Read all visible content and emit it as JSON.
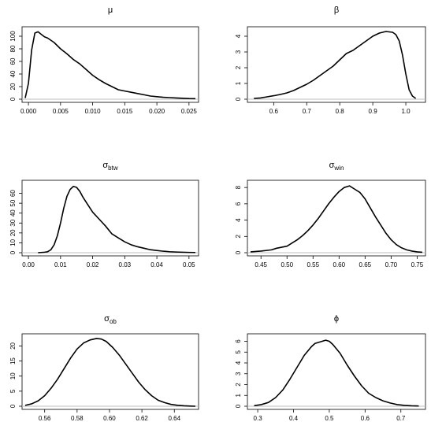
{
  "chart_data": [
    {
      "type": "line",
      "title": "μ",
      "xlim": [
        -0.0005,
        0.026
      ],
      "ylim": [
        0,
        110
      ],
      "xticks": [
        "0.000",
        "0.005",
        "0.010",
        "0.015",
        "0.020",
        "0.025"
      ],
      "xtick_values": [
        0,
        0.005,
        0.01,
        0.015,
        0.02,
        0.025
      ],
      "yticks": [
        "0",
        "20",
        "40",
        "60",
        "80",
        "100"
      ],
      "ytick_values": [
        0,
        20,
        40,
        60,
        80,
        100
      ],
      "series": [
        {
          "x": [
            -0.0005,
            0,
            0.0005,
            0.001,
            0.0015,
            0.002,
            0.0025,
            0.003,
            0.004,
            0.005,
            0.006,
            0.007,
            0.008,
            0.009,
            0.01,
            0.011,
            0.012,
            0.013,
            0.014,
            0.015,
            0.016,
            0.017,
            0.018,
            0.019,
            0.02,
            0.021,
            0.022,
            0.023,
            0.024,
            0.025,
            0.026
          ],
          "y": [
            2,
            25,
            78,
            105,
            107,
            103,
            99,
            97,
            90,
            80,
            72,
            63,
            56,
            47,
            38,
            31,
            25,
            20,
            15,
            13,
            11,
            9,
            7,
            5,
            4,
            3,
            2.5,
            2,
            1.5,
            1,
            0.8
          ]
        }
      ]
    },
    {
      "type": "line",
      "title": "β",
      "xlim": [
        0.53,
        1.05
      ],
      "ylim": [
        0,
        4.4
      ],
      "xticks": [
        "0.6",
        "0.7",
        "0.8",
        "0.9",
        "1.0"
      ],
      "xtick_values": [
        0.6,
        0.7,
        0.8,
        0.9,
        1.0
      ],
      "yticks": [
        "0",
        "1",
        "2",
        "3",
        "4"
      ],
      "ytick_values": [
        0,
        1,
        2,
        3,
        4
      ],
      "series": [
        {
          "x": [
            0.54,
            0.56,
            0.58,
            0.6,
            0.62,
            0.64,
            0.66,
            0.68,
            0.7,
            0.72,
            0.74,
            0.76,
            0.78,
            0.8,
            0.82,
            0.84,
            0.86,
            0.88,
            0.9,
            0.92,
            0.94,
            0.96,
            0.97,
            0.98,
            0.99,
            1.0,
            1.01,
            1.02,
            1.03
          ],
          "y": [
            0.05,
            0.08,
            0.15,
            0.22,
            0.3,
            0.4,
            0.55,
            0.75,
            0.95,
            1.2,
            1.5,
            1.8,
            2.1,
            2.5,
            2.9,
            3.1,
            3.4,
            3.7,
            4.0,
            4.2,
            4.3,
            4.25,
            4.1,
            3.7,
            2.8,
            1.6,
            0.6,
            0.2,
            0.05
          ]
        }
      ]
    },
    {
      "type": "line",
      "title": "σbtw",
      "title_main": "σ",
      "title_sub": "btw",
      "xlim": [
        -0.001,
        0.052
      ],
      "ylim": [
        0,
        70
      ],
      "xticks": [
        "0.00",
        "0.01",
        "0.02",
        "0.03",
        "0.04",
        "0.05"
      ],
      "xtick_values": [
        0,
        0.01,
        0.02,
        0.03,
        0.04,
        0.05
      ],
      "yticks": [
        "0",
        "10",
        "20",
        "30",
        "40",
        "50",
        "60"
      ],
      "ytick_values": [
        0,
        10,
        20,
        30,
        40,
        50,
        60
      ],
      "series": [
        {
          "x": [
            0.003,
            0.005,
            0.006,
            0.007,
            0.008,
            0.009,
            0.01,
            0.011,
            0.012,
            0.013,
            0.014,
            0.015,
            0.016,
            0.017,
            0.018,
            0.019,
            0.02,
            0.022,
            0.024,
            0.026,
            0.028,
            0.03,
            0.032,
            0.034,
            0.036,
            0.038,
            0.04,
            0.042,
            0.044,
            0.046,
            0.048,
            0.05,
            0.052
          ],
          "y": [
            0,
            0.5,
            1,
            3,
            8,
            17,
            30,
            45,
            57,
            64,
            67,
            66,
            62,
            56,
            51,
            46,
            41,
            34,
            27,
            19,
            15,
            11,
            8,
            6,
            4.5,
            3,
            2.2,
            1.5,
            1,
            0.7,
            0.5,
            0.3,
            0.2
          ]
        }
      ]
    },
    {
      "type": "line",
      "title": "σwin",
      "title_main": "σ",
      "title_sub": "win",
      "xlim": [
        0.43,
        0.76
      ],
      "ylim": [
        0,
        8.5
      ],
      "xticks": [
        "0.45",
        "0.50",
        "0.55",
        "0.60",
        "0.65",
        "0.70",
        "0.75"
      ],
      "xtick_values": [
        0.45,
        0.5,
        0.55,
        0.6,
        0.65,
        0.7,
        0.75
      ],
      "yticks": [
        "0",
        "2",
        "4",
        "6",
        "8"
      ],
      "ytick_values": [
        0,
        2,
        4,
        6,
        8
      ],
      "series": [
        {
          "x": [
            0.43,
            0.45,
            0.47,
            0.48,
            0.5,
            0.51,
            0.52,
            0.53,
            0.54,
            0.55,
            0.56,
            0.57,
            0.58,
            0.59,
            0.6,
            0.61,
            0.62,
            0.63,
            0.64,
            0.65,
            0.66,
            0.67,
            0.68,
            0.69,
            0.7,
            0.71,
            0.72,
            0.73,
            0.74,
            0.75,
            0.76
          ],
          "y": [
            0.1,
            0.2,
            0.35,
            0.55,
            0.8,
            1.2,
            1.6,
            2.1,
            2.7,
            3.4,
            4.2,
            5.1,
            6.0,
            6.8,
            7.5,
            8.0,
            8.2,
            7.8,
            7.4,
            6.6,
            5.5,
            4.4,
            3.4,
            2.4,
            1.6,
            1.0,
            0.6,
            0.35,
            0.2,
            0.1,
            0.05
          ]
        }
      ]
    },
    {
      "type": "line",
      "title": "σob",
      "title_main": "σ",
      "title_sub": "ob",
      "xlim": [
        0.548,
        0.653
      ],
      "ylim": [
        0,
        23
      ],
      "xticks": [
        "0.56",
        "0.58",
        "0.60",
        "0.62",
        "0.64"
      ],
      "xtick_values": [
        0.56,
        0.58,
        0.6,
        0.62,
        0.64
      ],
      "yticks": [
        "0",
        "5",
        "10",
        "15",
        "20"
      ],
      "ytick_values": [
        0,
        5,
        10,
        15,
        20
      ],
      "series": [
        {
          "x": [
            0.548,
            0.552,
            0.556,
            0.56,
            0.564,
            0.568,
            0.572,
            0.576,
            0.58,
            0.584,
            0.588,
            0.592,
            0.595,
            0.598,
            0.602,
            0.606,
            0.61,
            0.614,
            0.618,
            0.622,
            0.626,
            0.63,
            0.634,
            0.638,
            0.642,
            0.646,
            0.65,
            0.653
          ],
          "y": [
            0.3,
            0.8,
            1.8,
            3.5,
            6,
            9,
            12.5,
            16,
            19,
            21,
            22,
            22.5,
            22.3,
            21.5,
            19.5,
            17,
            14,
            11,
            8,
            5.5,
            3.5,
            2,
            1.2,
            0.6,
            0.3,
            0.15,
            0.05,
            0
          ]
        }
      ]
    },
    {
      "type": "line",
      "title": "ϕ",
      "xlim": [
        0.28,
        0.76
      ],
      "ylim": [
        0,
        6.4
      ],
      "xticks": [
        "0.3",
        "0.4",
        "0.5",
        "0.6",
        "0.7"
      ],
      "xtick_values": [
        0.3,
        0.4,
        0.5,
        0.6,
        0.7
      ],
      "yticks": [
        "0",
        "1",
        "2",
        "3",
        "4",
        "5",
        "6"
      ],
      "ytick_values": [
        0,
        1,
        2,
        3,
        4,
        5,
        6
      ],
      "series": [
        {
          "x": [
            0.29,
            0.31,
            0.33,
            0.35,
            0.37,
            0.39,
            0.41,
            0.43,
            0.45,
            0.46,
            0.47,
            0.48,
            0.49,
            0.5,
            0.51,
            0.53,
            0.55,
            0.57,
            0.59,
            0.61,
            0.63,
            0.65,
            0.67,
            0.69,
            0.71,
            0.73,
            0.75
          ],
          "y": [
            0.05,
            0.15,
            0.35,
            0.8,
            1.5,
            2.5,
            3.6,
            4.7,
            5.5,
            5.8,
            5.9,
            6.0,
            6.1,
            6.0,
            5.7,
            4.9,
            3.8,
            2.8,
            1.9,
            1.2,
            0.8,
            0.5,
            0.3,
            0.15,
            0.08,
            0.04,
            0.02
          ]
        }
      ]
    }
  ]
}
